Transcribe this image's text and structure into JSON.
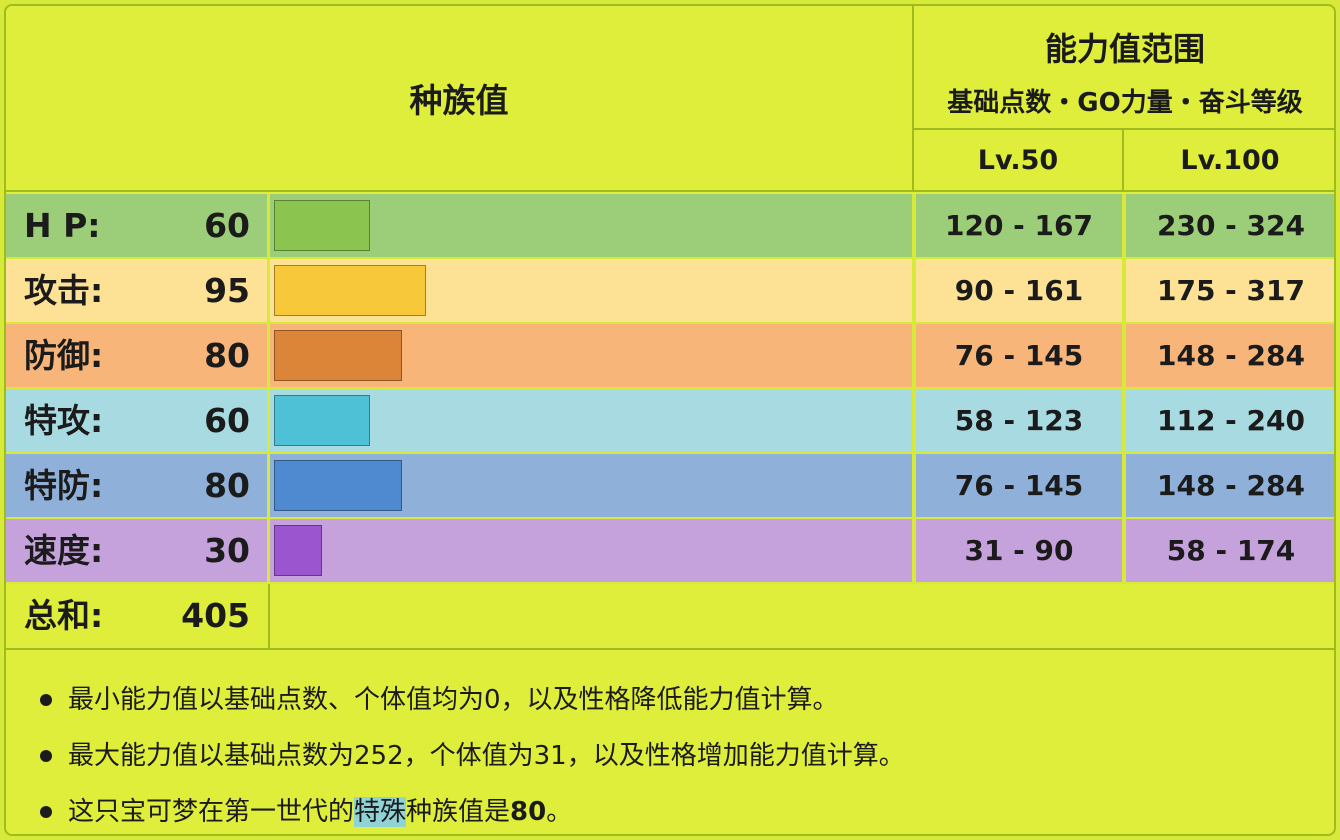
{
  "header": {
    "base_stats_title": "种族值",
    "range_title": "能力值范围",
    "range_subtitle": "基础点数・GO力量・奋斗等级",
    "lv50": "Lv.50",
    "lv100": "Lv.100"
  },
  "stats_max": 255,
  "stats": [
    {
      "label": "H P:",
      "value": 60,
      "range50": "120 - 167",
      "range100": "230 - 324",
      "row_color": "#9ccd78",
      "bar_color": "#8bc550"
    },
    {
      "label": "攻击:",
      "value": 95,
      "range50": "90 - 161",
      "range100": "175 - 317",
      "row_color": "#fde296",
      "bar_color": "#f6c83a"
    },
    {
      "label": "防御:",
      "value": 80,
      "range50": "76 - 145",
      "range100": "148 - 284",
      "row_color": "#f7b579",
      "bar_color": "#dc8538"
    },
    {
      "label": "特攻:",
      "value": 60,
      "range50": "58 - 123",
      "range100": "112 - 240",
      "row_color": "#a8dbe1",
      "bar_color": "#4fc1d6"
    },
    {
      "label": "特防:",
      "value": 80,
      "range50": "76 - 145",
      "range100": "148 - 284",
      "row_color": "#8fb1d9",
      "bar_color": "#4f8ad0"
    },
    {
      "label": "速度:",
      "value": 30,
      "range50": "31 - 90",
      "range100": "58 - 174",
      "row_color": "#c6a2dd",
      "bar_color": "#9b55cf"
    }
  ],
  "total": {
    "label": "总和:",
    "value": "405"
  },
  "notes": [
    {
      "text": "最小能力值以基础点数、个体值均为0，以及性格降低能力值计算。"
    },
    {
      "text": "最大能力值以基础点数为252，个体值为31，以及性格增加能力值计算。"
    },
    {
      "prefix": "这只宝可梦在第一世代的",
      "highlight": "特殊",
      "middle": "种族值是",
      "bold": "80",
      "suffix": "。"
    }
  ]
}
